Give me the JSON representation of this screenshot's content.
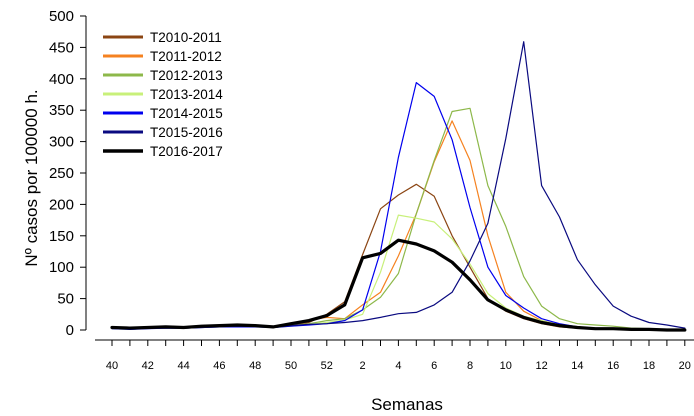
{
  "chart_data": {
    "type": "line",
    "title": "",
    "xlabel": "Semanas",
    "ylabel": "Nº casos por 100000 h.",
    "ylim": [
      0,
      500
    ],
    "yticks": [
      0,
      50,
      100,
      150,
      200,
      250,
      300,
      350,
      400,
      450,
      500
    ],
    "categories": [
      "40",
      "41",
      "42",
      "43",
      "44",
      "45",
      "46",
      "47",
      "48",
      "49",
      "50",
      "51",
      "52",
      "1",
      "2",
      "3",
      "4",
      "5",
      "6",
      "7",
      "8",
      "9",
      "10",
      "11",
      "12",
      "13",
      "14",
      "15",
      "16",
      "17",
      "18",
      "19",
      "20"
    ],
    "x_tick_labels": [
      "40",
      "42",
      "44",
      "46",
      "48",
      "50",
      "52",
      "2",
      "4",
      "6",
      "8",
      "10",
      "12",
      "14",
      "16",
      "18",
      "20"
    ],
    "legend_position": "top-left",
    "grid": false,
    "series": [
      {
        "name": "T2010-2011",
        "color": "#8B4513",
        "bold": false,
        "values": [
          3,
          2,
          4,
          5,
          4,
          6,
          6,
          7,
          6,
          4,
          8,
          12,
          25,
          45,
          120,
          193,
          215,
          232,
          213,
          150,
          100,
          50,
          30,
          18,
          10,
          5,
          3,
          2,
          1,
          1,
          1,
          0,
          0
        ]
      },
      {
        "name": "T2011-2012",
        "color": "#F58220",
        "bold": false,
        "values": [
          3,
          2,
          4,
          6,
          5,
          7,
          8,
          7,
          7,
          5,
          11,
          16,
          20,
          18,
          40,
          60,
          118,
          185,
          268,
          333,
          270,
          150,
          60,
          30,
          15,
          8,
          5,
          3,
          2,
          1,
          1,
          0,
          0
        ]
      },
      {
        "name": "T2012-2013",
        "color": "#8DB84A",
        "bold": false,
        "values": [
          2,
          1,
          3,
          4,
          3,
          5,
          6,
          6,
          6,
          4,
          7,
          10,
          15,
          18,
          32,
          52,
          90,
          185,
          270,
          348,
          353,
          230,
          165,
          85,
          38,
          18,
          10,
          8,
          6,
          3,
          2,
          1,
          1
        ]
      },
      {
        "name": "T2013-2014",
        "color": "#C8F07A",
        "bold": false,
        "values": [
          2,
          1,
          3,
          3,
          3,
          4,
          5,
          5,
          5,
          4,
          6,
          9,
          12,
          16,
          25,
          92,
          183,
          178,
          172,
          145,
          105,
          58,
          35,
          22,
          15,
          8,
          5,
          3,
          2,
          1,
          1,
          0,
          0
        ]
      },
      {
        "name": "T2014-2015",
        "color": "#0000EE",
        "bold": false,
        "values": [
          2,
          1,
          2,
          3,
          3,
          4,
          5,
          5,
          5,
          4,
          6,
          8,
          10,
          15,
          32,
          125,
          275,
          394,
          372,
          303,
          195,
          100,
          55,
          35,
          18,
          10,
          5,
          3,
          2,
          1,
          1,
          0,
          0
        ]
      },
      {
        "name": "T2015-2016",
        "color": "#0A0A80",
        "bold": false,
        "values": [
          3,
          2,
          3,
          3,
          3,
          4,
          5,
          6,
          6,
          4,
          7,
          9,
          10,
          12,
          15,
          20,
          26,
          28,
          40,
          60,
          110,
          170,
          305,
          459,
          230,
          180,
          112,
          72,
          38,
          22,
          12,
          8,
          3
        ]
      },
      {
        "name": "T2016-2017",
        "color": "#000000",
        "bold": true,
        "values": [
          4,
          3,
          4,
          5,
          4,
          6,
          7,
          8,
          7,
          5,
          10,
          15,
          23,
          40,
          115,
          122,
          143,
          137,
          126,
          108,
          80,
          48,
          32,
          20,
          12,
          7,
          4,
          2,
          2,
          1,
          1,
          0,
          0
        ]
      }
    ]
  }
}
